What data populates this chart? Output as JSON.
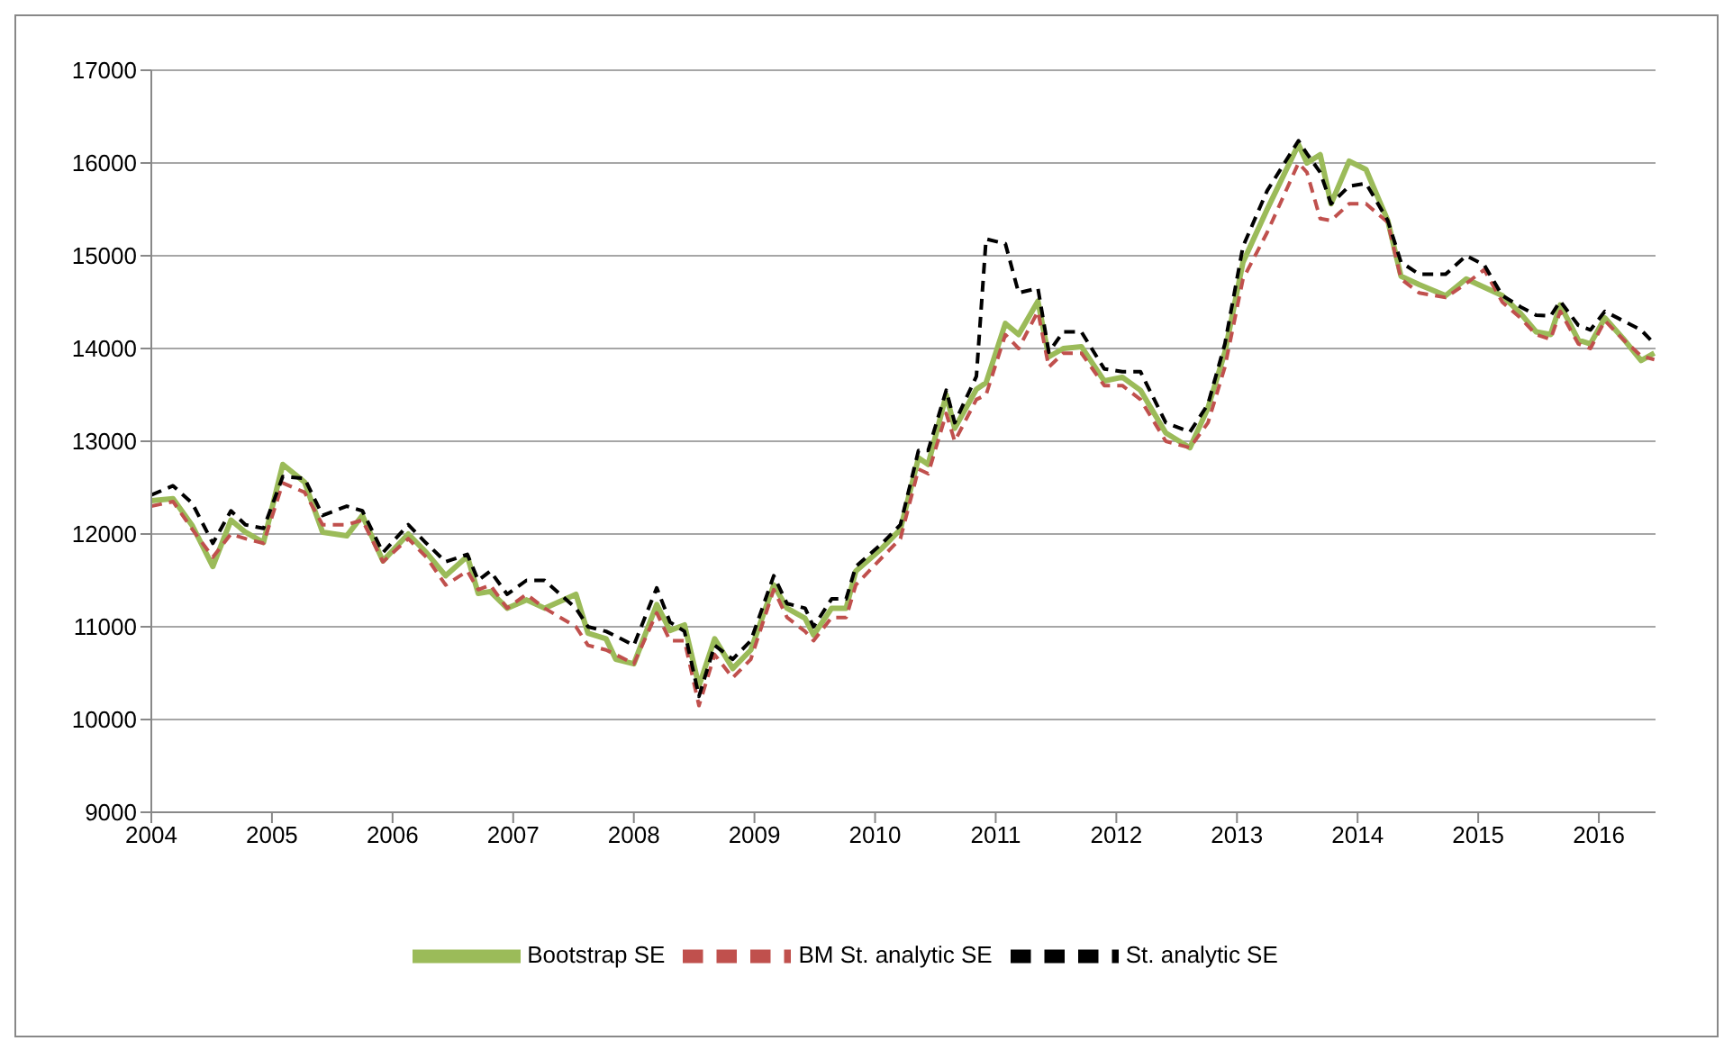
{
  "chart_data": {
    "type": "line",
    "x": [
      2004.0,
      2004.18,
      2004.34,
      2004.51,
      2004.66,
      2004.78,
      2004.93,
      2005.09,
      2005.27,
      2005.42,
      2005.62,
      2005.75,
      2005.92,
      2006.13,
      2006.28,
      2006.44,
      2006.62,
      2006.71,
      2006.81,
      2006.95,
      2007.11,
      2007.26,
      2007.52,
      2007.62,
      2007.77,
      2007.85,
      2008.0,
      2008.19,
      2008.3,
      2008.42,
      2008.54,
      2008.67,
      2008.82,
      2008.97,
      2009.16,
      2009.27,
      2009.42,
      2009.49,
      2009.64,
      2009.76,
      2009.84,
      2010.06,
      2010.21,
      2010.36,
      2010.44,
      2010.59,
      2010.66,
      2010.84,
      2010.92,
      2011.08,
      2011.19,
      2011.35,
      2011.44,
      2011.56,
      2011.71,
      2011.9,
      2012.05,
      2012.2,
      2012.41,
      2012.61,
      2012.76,
      2012.9,
      2013.05,
      2013.25,
      2013.51,
      2013.58,
      2013.69,
      2013.78,
      2013.93,
      2014.07,
      2014.25,
      2014.36,
      2014.51,
      2014.73,
      2014.9,
      2015.05,
      2015.2,
      2015.35,
      2015.48,
      2015.6,
      2015.68,
      2015.83,
      2015.93,
      2016.05,
      2016.2,
      2016.35,
      2016.46
    ],
    "series": [
      {
        "name": "Bootstrap SE",
        "color": "#9bbb59",
        "line_style": "solid",
        "values": [
          12360,
          12380,
          12090,
          11650,
          12150,
          12020,
          11910,
          12750,
          12560,
          12020,
          11980,
          12200,
          11710,
          12000,
          11800,
          11550,
          11760,
          11360,
          11380,
          11200,
          11290,
          11200,
          11350,
          10930,
          10870,
          10650,
          10600,
          11240,
          10960,
          11020,
          10360,
          10870,
          10550,
          10750,
          11450,
          11200,
          11090,
          10910,
          11200,
          11200,
          11600,
          11850,
          12050,
          12820,
          12750,
          13500,
          13140,
          13560,
          13630,
          14270,
          14150,
          14510,
          13910,
          14000,
          14020,
          13650,
          13690,
          13550,
          13090,
          12930,
          13360,
          13960,
          14930,
          15500,
          16200,
          16000,
          16090,
          15560,
          16020,
          15930,
          15380,
          14780,
          14690,
          14570,
          14750,
          14660,
          14570,
          14380,
          14180,
          14150,
          14470,
          14090,
          14050,
          14330,
          14110,
          13870,
          13950
        ]
      },
      {
        "name": "BM St. analytic SE",
        "color": "#c0504d",
        "line_style": "dashed",
        "values": [
          12300,
          12350,
          12050,
          11750,
          12000,
          11950,
          11900,
          12550,
          12450,
          12100,
          12100,
          12150,
          11700,
          11950,
          11750,
          11450,
          11600,
          11400,
          11450,
          11200,
          11350,
          11200,
          11000,
          10800,
          10750,
          10700,
          10600,
          11150,
          10850,
          10850,
          10150,
          10700,
          10450,
          10650,
          11400,
          11100,
          10950,
          10850,
          11100,
          11100,
          11450,
          11750,
          11950,
          12700,
          12650,
          13300,
          13000,
          13450,
          13500,
          14150,
          14000,
          14400,
          13800,
          13950,
          13950,
          13600,
          13600,
          13450,
          13000,
          12930,
          13200,
          13800,
          14750,
          15250,
          16000,
          15900,
          15400,
          15380,
          15560,
          15560,
          15360,
          14750,
          14600,
          14550,
          14700,
          14850,
          14500,
          14330,
          14150,
          14100,
          14400,
          14050,
          14000,
          14300,
          14100,
          13920,
          13880
        ]
      },
      {
        "name": "St. analytic SE",
        "color": "#000000",
        "line_style": "dashed",
        "values": [
          12420,
          12520,
          12330,
          11900,
          12250,
          12100,
          12060,
          12620,
          12600,
          12200,
          12300,
          12250,
          11800,
          12100,
          11900,
          11700,
          11780,
          11500,
          11600,
          11350,
          11500,
          11500,
          11200,
          11000,
          10950,
          10900,
          10800,
          11420,
          11050,
          10950,
          10250,
          10800,
          10650,
          10850,
          11550,
          11250,
          11200,
          11000,
          11300,
          11300,
          11650,
          11900,
          12100,
          12900,
          12900,
          13550,
          13200,
          13700,
          15180,
          15130,
          14600,
          14650,
          13960,
          14180,
          14180,
          13780,
          13750,
          13750,
          13200,
          13100,
          13400,
          14050,
          15100,
          15700,
          16240,
          16100,
          15900,
          15560,
          15750,
          15780,
          15380,
          14930,
          14800,
          14800,
          15000,
          14900,
          14570,
          14450,
          14360,
          14350,
          14510,
          14250,
          14200,
          14400,
          14300,
          14200,
          14050
        ]
      }
    ],
    "xlim": [
      2004,
      2016.47
    ],
    "xticks": [
      2004,
      2005,
      2006,
      2007,
      2008,
      2009,
      2010,
      2011,
      2012,
      2013,
      2014,
      2015,
      2016
    ],
    "ylim": [
      9000,
      17000
    ],
    "yticks": [
      9000,
      10000,
      11000,
      12000,
      13000,
      14000,
      15000,
      16000,
      17000
    ],
    "grid": "y",
    "legend": "bottom",
    "marker": "none"
  }
}
